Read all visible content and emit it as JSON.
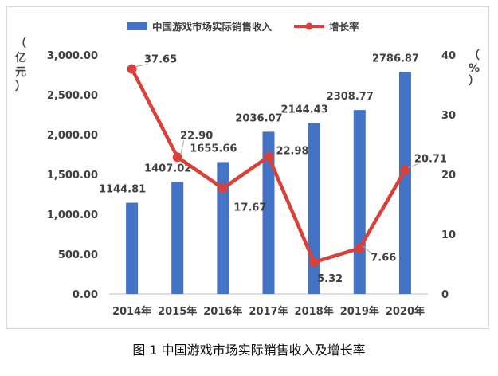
{
  "caption": "图 1  中国游戏市场实际销售收入及增长率",
  "chart_data": {
    "type": "bar",
    "categories": [
      "2014年",
      "2015年",
      "2016年",
      "2017年",
      "2018年",
      "2019年",
      "2020年"
    ],
    "series": [
      {
        "name": "中国游戏市场实际销售收入",
        "type": "bar",
        "axis": "left",
        "color": "#4472c4",
        "values": [
          1144.81,
          1407.02,
          1655.66,
          2036.07,
          2144.43,
          2308.77,
          2786.87
        ],
        "labels": [
          "1144.81",
          "1407.02",
          "1655.66",
          "2036.07",
          "2144.43",
          "2308.77",
          "2786.87"
        ]
      },
      {
        "name": "增长率",
        "type": "line",
        "axis": "right",
        "color": "#d9403a",
        "values": [
          37.65,
          22.9,
          17.67,
          22.98,
          5.32,
          7.66,
          20.71
        ],
        "labels": [
          "37.65",
          "22.90",
          "17.67",
          "22.98",
          "5.32",
          "7.66",
          "20.71"
        ]
      }
    ],
    "y_left": {
      "unit_chars": [
        "（",
        "亿",
        "元",
        "）"
      ],
      "range": [
        0,
        3000
      ],
      "ticks": [
        0,
        500,
        1000,
        1500,
        2000,
        2500,
        3000
      ],
      "tick_labels": [
        "0.00",
        "500.00",
        "1,000.00",
        "1,500.00",
        "2,000.00",
        "2,500.00",
        "3,000.00"
      ]
    },
    "y_right": {
      "unit_chars": [
        "（",
        "%",
        "）"
      ],
      "range": [
        0,
        40
      ],
      "ticks": [
        0,
        10,
        20,
        30,
        40
      ],
      "tick_labels": [
        "0",
        "10",
        "20",
        "30",
        "40"
      ]
    },
    "grid": false,
    "legend": "top"
  }
}
